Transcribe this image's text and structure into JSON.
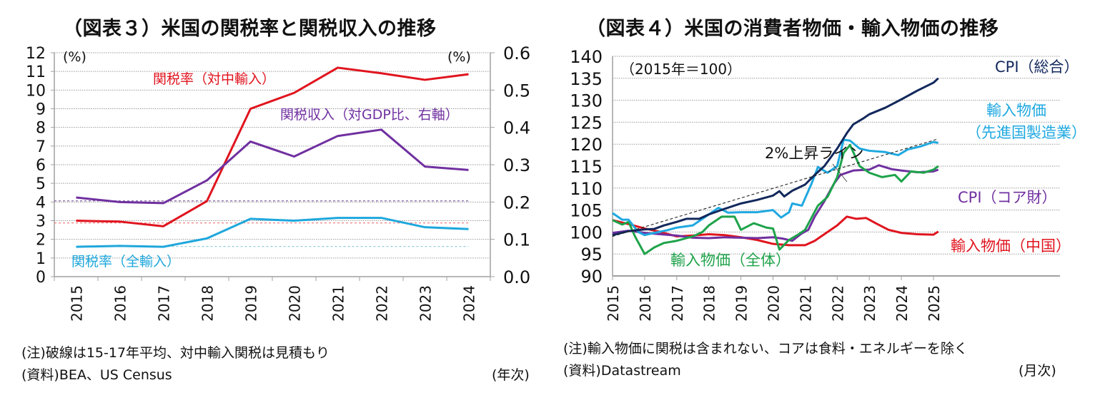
{
  "chart_data": [
    {
      "id": "fig3",
      "type": "line",
      "title": "（図表３）米国の関税率と関税収入の推移",
      "left_unit": "(%)",
      "right_unit": "(%)",
      "xlabel": "(年次)",
      "categories": [
        "2015",
        "2016",
        "2017",
        "2018",
        "2019",
        "2020",
        "2021",
        "2022",
        "2023",
        "2024"
      ],
      "y_left": {
        "min": 0,
        "max": 12,
        "ticks": [
          0,
          1,
          2,
          3,
          4,
          5,
          6,
          7,
          8,
          9,
          10,
          11,
          12
        ]
      },
      "y_right": {
        "min": 0.0,
        "max": 0.6,
        "ticks": [
          "0.0",
          "0.1",
          "0.2",
          "0.3",
          "0.4",
          "0.5",
          "0.6"
        ]
      },
      "grid": true,
      "series": [
        {
          "name": "関税率（対中輸入）",
          "axis": "left",
          "color": "#e0141e",
          "values": [
            3.0,
            2.95,
            2.7,
            4.05,
            9.0,
            9.85,
            11.2,
            10.9,
            10.55,
            10.85
          ]
        },
        {
          "name": "関税収入（対GDP比、右軸）",
          "axis": "right",
          "color": "#7030a0",
          "values": [
            0.212,
            0.2,
            0.197,
            0.258,
            0.362,
            0.322,
            0.377,
            0.394,
            0.295,
            0.286
          ]
        },
        {
          "name": "関税率（全輸入）",
          "axis": "left",
          "color": "#1ea7dc",
          "values": [
            1.6,
            1.65,
            1.6,
            2.05,
            3.1,
            3.0,
            3.15,
            3.15,
            2.65,
            2.55
          ]
        }
      ],
      "reference_lines": [
        {
          "name": "対中輸入 15-17年平均",
          "axis": "left",
          "color": "#f08080",
          "value": 2.88
        },
        {
          "name": "関税収入 15-17年平均",
          "axis": "right",
          "color": "#8064a2",
          "value": 0.203
        },
        {
          "name": "全輸入 15-17年平均",
          "axis": "left",
          "color": "#92cddc",
          "value": 1.62
        }
      ],
      "annotations": [
        "関税率（対中輸入）",
        "関税収入（対GDP比、右軸）",
        "関税率（全輸入）"
      ],
      "notes": [
        "(注)破線は15-17年平均、対中輸入関税は見積もり",
        "(資料)BEA、US Census"
      ]
    },
    {
      "id": "fig4",
      "type": "line",
      "title": "（図表４）米国の消費者物価・輸入物価の推移",
      "base_note": "（2015年＝100）",
      "xlabel": "(月次)",
      "x_ticks": [
        "2015",
        "2016",
        "2017",
        "2018",
        "2019",
        "2020",
        "2021",
        "2022",
        "2023",
        "2024",
        "2025"
      ],
      "x_range": [
        2015.0,
        2025.2
      ],
      "y": {
        "min": 90,
        "max": 140,
        "ticks": [
          90,
          95,
          100,
          105,
          110,
          115,
          120,
          125,
          130,
          135,
          140
        ]
      },
      "grid": true,
      "series": [
        {
          "name": "CPI（総合）",
          "color": "#12285c",
          "points": [
            [
              2015.0,
              99.3
            ],
            [
              2015.5,
              100.2
            ],
            [
              2016.0,
              100.6
            ],
            [
              2016.3,
              100.7
            ],
            [
              2016.6,
              101.5
            ],
            [
              2017.0,
              102.3
            ],
            [
              2017.3,
              103.0
            ],
            [
              2017.7,
              103.0
            ],
            [
              2018.0,
              104.0
            ],
            [
              2018.5,
              105.3
            ],
            [
              2019.0,
              106.5
            ],
            [
              2019.5,
              107.3
            ],
            [
              2020.0,
              108.3
            ],
            [
              2020.2,
              109.3
            ],
            [
              2020.35,
              108.1
            ],
            [
              2020.6,
              109.4
            ],
            [
              2021.0,
              110.8
            ],
            [
              2021.3,
              113.0
            ],
            [
              2021.6,
              115.0
            ],
            [
              2022.0,
              119.0
            ],
            [
              2022.3,
              122.5
            ],
            [
              2022.5,
              124.5
            ],
            [
              2022.8,
              125.8
            ],
            [
              2023.0,
              126.8
            ],
            [
              2023.5,
              128.3
            ],
            [
              2024.0,
              130.2
            ],
            [
              2024.5,
              132.2
            ],
            [
              2025.0,
              134.0
            ],
            [
              2025.15,
              135.0
            ]
          ]
        },
        {
          "name": "輸入物価（先進国製造業）",
          "color": "#1fa8e0",
          "points": [
            [
              2015.0,
              104.3
            ],
            [
              2015.3,
              102.8
            ],
            [
              2015.5,
              102.8
            ],
            [
              2015.8,
              100.0
            ],
            [
              2016.0,
              99.3
            ],
            [
              2016.3,
              99.8
            ],
            [
              2016.7,
              100.4
            ],
            [
              2017.0,
              101.0
            ],
            [
              2017.5,
              101.5
            ],
            [
              2018.0,
              104.0
            ],
            [
              2018.3,
              105.5
            ],
            [
              2018.6,
              104.4
            ],
            [
              2019.0,
              104.5
            ],
            [
              2019.5,
              104.5
            ],
            [
              2020.0,
              105.0
            ],
            [
              2020.25,
              103.3
            ],
            [
              2020.5,
              104.5
            ],
            [
              2020.6,
              106.5
            ],
            [
              2020.9,
              106.0
            ],
            [
              2021.2,
              111.0
            ],
            [
              2021.4,
              114.8
            ],
            [
              2021.7,
              113.5
            ],
            [
              2022.0,
              115.0
            ],
            [
              2022.2,
              121.0
            ],
            [
              2022.4,
              120.8
            ],
            [
              2022.7,
              119.0
            ],
            [
              2023.0,
              118.5
            ],
            [
              2023.5,
              118.2
            ],
            [
              2023.9,
              117.5
            ],
            [
              2024.2,
              118.8
            ],
            [
              2024.6,
              119.5
            ],
            [
              2025.0,
              120.5
            ],
            [
              2025.15,
              120.3
            ]
          ]
        },
        {
          "name": "輸入物価（全体）",
          "color": "#1ea34a",
          "points": [
            [
              2015.0,
              102.7
            ],
            [
              2015.3,
              101.7
            ],
            [
              2015.5,
              102.3
            ],
            [
              2015.7,
              99.0
            ],
            [
              2016.0,
              95.0
            ],
            [
              2016.3,
              96.5
            ],
            [
              2016.6,
              97.5
            ],
            [
              2017.0,
              98.0
            ],
            [
              2017.5,
              99.0
            ],
            [
              2017.8,
              100.0
            ],
            [
              2018.0,
              101.5
            ],
            [
              2018.4,
              103.5
            ],
            [
              2018.8,
              103.5
            ],
            [
              2019.0,
              100.5
            ],
            [
              2019.4,
              102.0
            ],
            [
              2019.8,
              101.0
            ],
            [
              2020.0,
              100.8
            ],
            [
              2020.2,
              96.0
            ],
            [
              2020.5,
              98.2
            ],
            [
              2020.8,
              99.5
            ],
            [
              2021.0,
              100.5
            ],
            [
              2021.4,
              106.0
            ],
            [
              2021.7,
              108.0
            ],
            [
              2022.0,
              112.5
            ],
            [
              2022.2,
              118.0
            ],
            [
              2022.4,
              119.8
            ],
            [
              2022.7,
              115.0
            ],
            [
              2023.0,
              113.5
            ],
            [
              2023.4,
              112.5
            ],
            [
              2023.8,
              113.0
            ],
            [
              2024.0,
              111.5
            ],
            [
              2024.3,
              113.8
            ],
            [
              2024.7,
              113.5
            ],
            [
              2025.0,
              114.2
            ],
            [
              2025.15,
              115.0
            ]
          ]
        },
        {
          "name": "CPI（コア財）",
          "color": "#7030a0",
          "points": [
            [
              2015.0,
              99.8
            ],
            [
              2015.5,
              100.3
            ],
            [
              2016.0,
              99.8
            ],
            [
              2016.5,
              99.5
            ],
            [
              2017.0,
              99.2
            ],
            [
              2017.5,
              98.7
            ],
            [
              2018.0,
              98.6
            ],
            [
              2018.5,
              98.8
            ],
            [
              2019.0,
              98.7
            ],
            [
              2019.5,
              98.6
            ],
            [
              2020.0,
              98.8
            ],
            [
              2020.3,
              98.5
            ],
            [
              2020.6,
              98.0
            ],
            [
              2020.9,
              99.7
            ],
            [
              2021.1,
              100.5
            ],
            [
              2021.3,
              103.5
            ],
            [
              2021.6,
              107.0
            ],
            [
              2021.9,
              111.0
            ],
            [
              2022.1,
              113.0
            ],
            [
              2022.5,
              114.0
            ],
            [
              2023.0,
              114.2
            ],
            [
              2023.3,
              115.2
            ],
            [
              2023.7,
              114.3
            ],
            [
              2024.0,
              114.0
            ],
            [
              2024.5,
              113.6
            ],
            [
              2025.0,
              113.8
            ],
            [
              2025.15,
              114.2
            ]
          ]
        },
        {
          "name": "輸入物価（中国）",
          "color": "#e0141e",
          "points": [
            [
              2015.0,
              102.7
            ],
            [
              2015.5,
              101.8
            ],
            [
              2016.0,
              100.8
            ],
            [
              2016.5,
              100.0
            ],
            [
              2017.0,
              99.0
            ],
            [
              2017.5,
              99.2
            ],
            [
              2018.0,
              99.5
            ],
            [
              2018.5,
              99.3
            ],
            [
              2019.0,
              98.8
            ],
            [
              2019.5,
              98.2
            ],
            [
              2020.0,
              97.3
            ],
            [
              2020.5,
              97.0
            ],
            [
              2021.0,
              97.0
            ],
            [
              2021.3,
              98.0
            ],
            [
              2021.7,
              100.0
            ],
            [
              2022.0,
              101.5
            ],
            [
              2022.3,
              103.5
            ],
            [
              2022.6,
              103.0
            ],
            [
              2022.9,
              103.2
            ],
            [
              2023.2,
              102.0
            ],
            [
              2023.6,
              100.5
            ],
            [
              2024.0,
              99.8
            ],
            [
              2024.5,
              99.5
            ],
            [
              2025.0,
              99.4
            ],
            [
              2025.15,
              100.1
            ]
          ]
        },
        {
          "name": "2%上昇ライン",
          "color": "#222222",
          "dashed": true,
          "points": [
            [
              2015.0,
              99.0
            ],
            [
              2025.15,
              121.2
            ]
          ]
        }
      ],
      "annotations": [
        "CPI（総合）",
        "輸入物価",
        "（先進国製造業）",
        "2%上昇ライン",
        "CPI（コア財）",
        "輸入物価（中国）",
        "輸入物価（全体）"
      ],
      "notes": [
        "(注)輸入物価に関税は含まれない、コアは食料・エネルギーを除く",
        "(資料)Datastream"
      ]
    }
  ]
}
